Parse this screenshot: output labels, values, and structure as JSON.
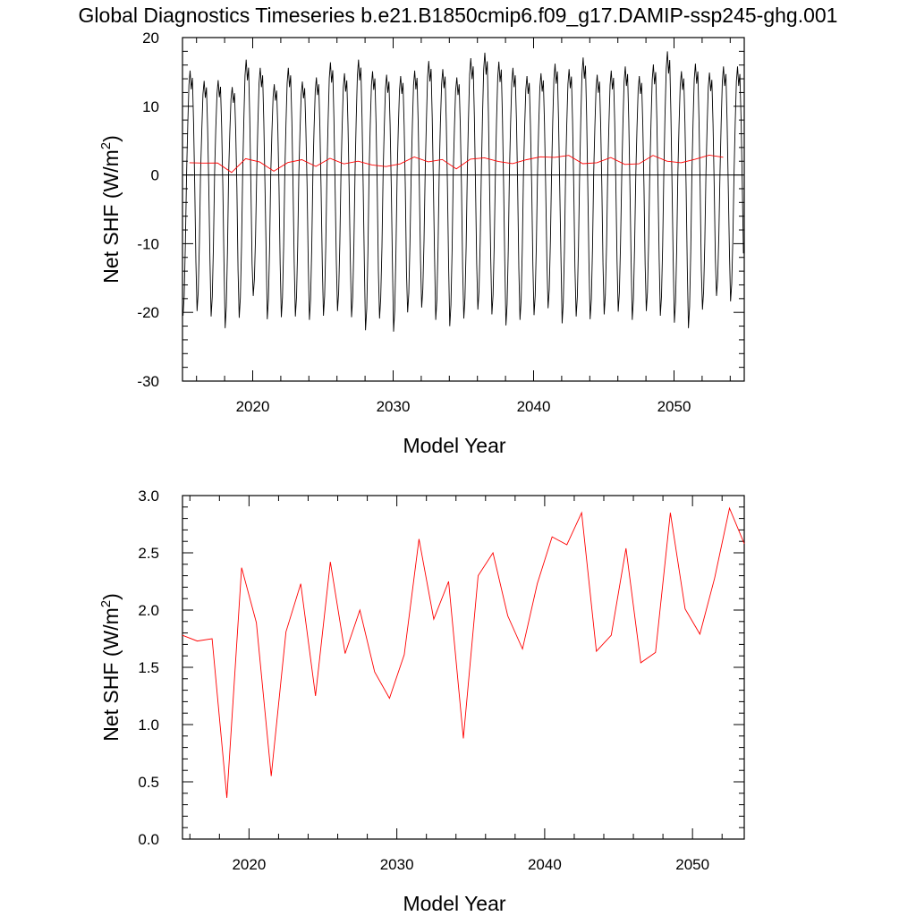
{
  "title": "Global Diagnostics Timeseries b.e21.B1850cmip6.f09_g17.DAMIP-ssp245-ghg.001",
  "colors": {
    "monthly": "#000000",
    "annual": "#ff0000",
    "zero_line": "#000000"
  },
  "chart_data": [
    {
      "type": "line",
      "xlabel": "Model Year",
      "ylabel_main": "Net SHF (W/m",
      "ylabel_sup": "2",
      "ylabel_end": ")",
      "xlim": [
        2015,
        2055
      ],
      "ylim": [
        -30,
        20
      ],
      "xticks": [
        2020,
        2030,
        2040,
        2050
      ],
      "yticks": [
        -30,
        -20,
        -10,
        0,
        10,
        20
      ],
      "ytick_labels": [
        "-30",
        "-20",
        "-10",
        "0",
        "10",
        "20"
      ],
      "zero_line": true,
      "grid": false,
      "series": [
        {
          "kind": "monthly",
          "start_year": 2015.04,
          "step_years": 0.0833,
          "annual_peaks": [
            15.2,
            13.7,
            13.8,
            12.8,
            16.8,
            15.6,
            13.2,
            15.6,
            13.6,
            14.2,
            16.4,
            14.8,
            16.8,
            15.1,
            14.6,
            14.4,
            15.2,
            16.6,
            15.4,
            14.2,
            17.0,
            17.8,
            16.5,
            15.6,
            14.4,
            14.8,
            16.2,
            15.4,
            17.1,
            14.6,
            15.2,
            15.8,
            14.4,
            16.1,
            18.0,
            15.1,
            16.2,
            14.9,
            15.8
          ],
          "annual_troughs": [
            -20.5,
            -19.8,
            -20.6,
            -22.3,
            -20.8,
            -17.6,
            -21.0,
            -20.7,
            -20.6,
            -21.1,
            -20.5,
            -19.8,
            -20.7,
            -22.6,
            -20.9,
            -22.8,
            -20.0,
            -19.3,
            -21.1,
            -22.0,
            -20.9,
            -19.6,
            -20.3,
            -21.9,
            -21.1,
            -20.4,
            -19.4,
            -21.6,
            -20.6,
            -21.0,
            -20.3,
            -19.9,
            -21.1,
            -19.8,
            -20.5,
            -21.5,
            -22.3,
            -19.6,
            -17.6,
            -18.4
          ]
        },
        {
          "kind": "annual",
          "name": "annual",
          "x": [
            2015.5,
            2016.5,
            2017.5,
            2018.5,
            2019.5,
            2020.5,
            2021.5,
            2022.5,
            2023.5,
            2024.5,
            2025.5,
            2026.5,
            2027.5,
            2028.5,
            2029.5,
            2030.5,
            2031.5,
            2032.5,
            2033.5,
            2034.5,
            2035.5,
            2036.5,
            2037.5,
            2038.5,
            2039.5,
            2040.5,
            2041.5,
            2042.5,
            2043.5,
            2044.5,
            2045.5,
            2046.5,
            2047.5,
            2048.5,
            2049.5,
            2050.5,
            2051.5,
            2052.5,
            2053.5
          ],
          "y": [
            1.78,
            1.73,
            1.75,
            0.36,
            2.37,
            1.89,
            0.55,
            1.81,
            2.23,
            1.25,
            2.42,
            1.62,
            2.0,
            1.46,
            1.23,
            1.61,
            2.62,
            1.92,
            2.25,
            0.88,
            2.3,
            2.5,
            1.95,
            1.66,
            2.23,
            2.64,
            2.57,
            2.85,
            1.64,
            1.78,
            2.54,
            1.54,
            1.63,
            2.85,
            2.01,
            1.79,
            2.28,
            2.89,
            2.58
          ]
        }
      ]
    },
    {
      "type": "line",
      "xlabel": "Model Year",
      "ylabel_main": "Net SHF (W/m",
      "ylabel_sup": "2",
      "ylabel_end": ")",
      "xlim": [
        2015.5,
        2053.5
      ],
      "ylim": [
        0.0,
        3.0
      ],
      "xticks": [
        2020,
        2030,
        2040,
        2050
      ],
      "yticks": [
        0.0,
        0.5,
        1.0,
        1.5,
        2.0,
        2.5,
        3.0
      ],
      "ytick_labels": [
        "0.0",
        "0.5",
        "1.0",
        "1.5",
        "2.0",
        "2.5",
        "3.0"
      ],
      "grid": false,
      "series": [
        {
          "kind": "annual",
          "name": "annual",
          "x": [
            2015.5,
            2016.5,
            2017.5,
            2018.5,
            2019.5,
            2020.5,
            2021.5,
            2022.5,
            2023.5,
            2024.5,
            2025.5,
            2026.5,
            2027.5,
            2028.5,
            2029.5,
            2030.5,
            2031.5,
            2032.5,
            2033.5,
            2034.5,
            2035.5,
            2036.5,
            2037.5,
            2038.5,
            2039.5,
            2040.5,
            2041.5,
            2042.5,
            2043.5,
            2044.5,
            2045.5,
            2046.5,
            2047.5,
            2048.5,
            2049.5,
            2050.5,
            2051.5,
            2052.5,
            2053.5
          ],
          "y": [
            1.78,
            1.73,
            1.75,
            0.36,
            2.37,
            1.89,
            0.55,
            1.81,
            2.23,
            1.25,
            2.42,
            1.62,
            2.0,
            1.46,
            1.23,
            1.61,
            2.62,
            1.92,
            2.25,
            0.88,
            2.3,
            2.5,
            1.95,
            1.66,
            2.23,
            2.64,
            2.57,
            2.85,
            1.64,
            1.78,
            2.54,
            1.54,
            1.63,
            2.85,
            2.01,
            1.79,
            2.28,
            2.89,
            2.58
          ]
        }
      ]
    }
  ]
}
